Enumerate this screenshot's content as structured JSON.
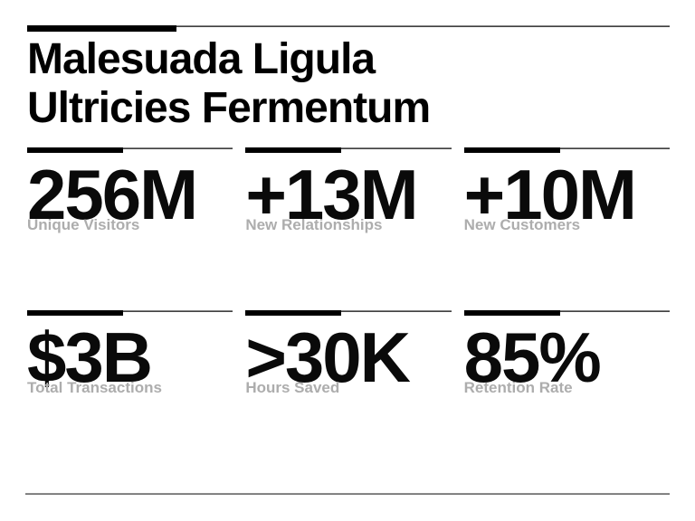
{
  "page": {
    "background_color": "#ffffff",
    "accent_color": "#000000",
    "value_color": "#0a0a0a",
    "label_color": "#adadad",
    "divider_color": "#262626",
    "footer_divider_color": "#808080"
  },
  "title": {
    "full_text": "Malesuada Ligula Ultricies Fermentum",
    "lines": [
      "Malesuada Ligula",
      "Ultricies Fermentum"
    ]
  },
  "stats": {
    "rows": [
      [
        {
          "value": "256M",
          "label": "Unique Visitors"
        },
        {
          "value": "+13M",
          "label": "New Relationships"
        },
        {
          "value": "+10M",
          "label": "New Customers"
        }
      ],
      [
        {
          "value": "$3B",
          "label": "Total Transactions"
        },
        {
          "value": ">30K",
          "label": "Hours Saved"
        },
        {
          "value": "85%",
          "label": "Retention Rate"
        }
      ]
    ]
  }
}
